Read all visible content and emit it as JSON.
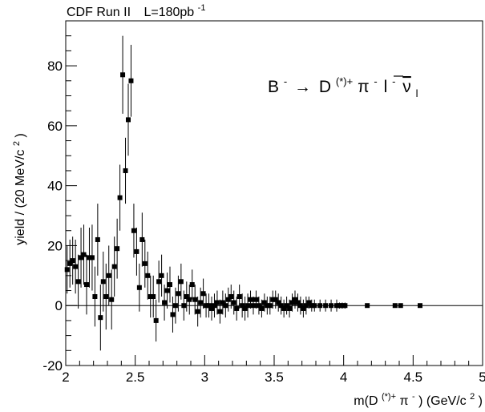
{
  "chart_data": {
    "type": "scatter",
    "header": {
      "experiment": "CDF Run II",
      "lumi_prefix": "L=180pb",
      "lumi_exp": "-1"
    },
    "decay_label": {
      "parent": "B",
      "parent_charge": "-",
      "arrow": "→",
      "d_meson": "D",
      "d_sup": "(*)+",
      "pion": "π",
      "pion_charge": "-",
      "lepton": "l",
      "lepton_charge": "-",
      "neutrino": "ν",
      "neutrino_sub": "l"
    },
    "ylabel": {
      "main": "yield / (20 MeV/c",
      "sup": "2",
      "end": ")"
    },
    "xlabel": {
      "prefix": "m(D",
      "sup1": "(*)+",
      "pion": "π",
      "pion_charge": "-",
      "mid": ") (GeV/c",
      "sup2": "2",
      "end": ")"
    },
    "xlim": [
      2,
      5
    ],
    "ylim": [
      -20,
      95
    ],
    "x_ticks": [
      {
        "value": 2,
        "label": "2"
      },
      {
        "value": 2.5,
        "label": "2.5"
      },
      {
        "value": 3,
        "label": "3"
      },
      {
        "value": 3.5,
        "label": "3.5"
      },
      {
        "value": 4,
        "label": "4"
      },
      {
        "value": 4.5,
        "label": "4.5"
      },
      {
        "value": 5,
        "label": "5"
      }
    ],
    "y_ticks": [
      {
        "value": -20,
        "label": "-20"
      },
      {
        "value": 0,
        "label": "0"
      },
      {
        "value": 20,
        "label": "20"
      },
      {
        "value": 40,
        "label": "40"
      },
      {
        "value": 60,
        "label": "60"
      },
      {
        "value": 80,
        "label": "80"
      }
    ],
    "reference_line_y": 0,
    "points": [
      {
        "x": 2.01,
        "y": 12,
        "err": 8
      },
      {
        "x": 2.03,
        "y": 14,
        "err": 8
      },
      {
        "x": 2.05,
        "y": 15,
        "err": 8
      },
      {
        "x": 2.07,
        "y": 13,
        "err": 9
      },
      {
        "x": 2.09,
        "y": 8,
        "err": 9
      },
      {
        "x": 2.11,
        "y": 16,
        "err": 10
      },
      {
        "x": 2.13,
        "y": 17,
        "err": 10
      },
      {
        "x": 2.15,
        "y": 7,
        "err": 10
      },
      {
        "x": 2.17,
        "y": 16,
        "err": 10
      },
      {
        "x": 2.19,
        "y": 16,
        "err": 11
      },
      {
        "x": 2.21,
        "y": 3,
        "err": 10
      },
      {
        "x": 2.23,
        "y": 22,
        "err": 12
      },
      {
        "x": 2.25,
        "y": -4,
        "err": 11
      },
      {
        "x": 2.27,
        "y": 8,
        "err": 10
      },
      {
        "x": 2.29,
        "y": 3,
        "err": 11
      },
      {
        "x": 2.31,
        "y": 10,
        "err": 10
      },
      {
        "x": 2.33,
        "y": 2,
        "err": 10
      },
      {
        "x": 2.35,
        "y": 13,
        "err": 10
      },
      {
        "x": 2.37,
        "y": 19,
        "err": 10
      },
      {
        "x": 2.39,
        "y": 36,
        "err": 11
      },
      {
        "x": 2.41,
        "y": 77,
        "err": 13
      },
      {
        "x": 2.43,
        "y": 45,
        "err": 11
      },
      {
        "x": 2.45,
        "y": 62,
        "err": 12
      },
      {
        "x": 2.47,
        "y": 75,
        "err": 12
      },
      {
        "x": 2.49,
        "y": 25,
        "err": 9
      },
      {
        "x": 2.51,
        "y": 18,
        "err": 8
      },
      {
        "x": 2.53,
        "y": 6,
        "err": 8
      },
      {
        "x": 2.55,
        "y": 22,
        "err": 9
      },
      {
        "x": 2.57,
        "y": 14,
        "err": 8
      },
      {
        "x": 2.59,
        "y": 10,
        "err": 8
      },
      {
        "x": 2.61,
        "y": 3,
        "err": 7
      },
      {
        "x": 2.63,
        "y": 3,
        "err": 7
      },
      {
        "x": 2.65,
        "y": -5,
        "err": 7
      },
      {
        "x": 2.67,
        "y": 8,
        "err": 7
      },
      {
        "x": 2.69,
        "y": 10,
        "err": 7
      },
      {
        "x": 2.71,
        "y": 1,
        "err": 6
      },
      {
        "x": 2.73,
        "y": 5,
        "err": 6
      },
      {
        "x": 2.75,
        "y": 7,
        "err": 6
      },
      {
        "x": 2.77,
        "y": -3,
        "err": 6
      },
      {
        "x": 2.79,
        "y": 0,
        "err": 6
      },
      {
        "x": 2.81,
        "y": 4,
        "err": 6
      },
      {
        "x": 2.83,
        "y": 8,
        "err": 6
      },
      {
        "x": 2.85,
        "y": 0,
        "err": 5
      },
      {
        "x": 2.87,
        "y": 3,
        "err": 5
      },
      {
        "x": 2.89,
        "y": 2,
        "err": 5
      },
      {
        "x": 2.91,
        "y": 7,
        "err": 5
      },
      {
        "x": 2.93,
        "y": 2,
        "err": 5
      },
      {
        "x": 2.95,
        "y": -2,
        "err": 5
      },
      {
        "x": 2.97,
        "y": 1,
        "err": 5
      },
      {
        "x": 2.99,
        "y": 4,
        "err": 5
      },
      {
        "x": 3.01,
        "y": 0,
        "err": 4
      },
      {
        "x": 3.03,
        "y": 0,
        "err": 4
      },
      {
        "x": 3.05,
        "y": -1,
        "err": 4
      },
      {
        "x": 3.07,
        "y": 0,
        "err": 4
      },
      {
        "x": 3.09,
        "y": 1,
        "err": 4
      },
      {
        "x": 3.11,
        "y": -2,
        "err": 4
      },
      {
        "x": 3.13,
        "y": 1,
        "err": 4
      },
      {
        "x": 3.15,
        "y": 0,
        "err": 4
      },
      {
        "x": 3.17,
        "y": 2,
        "err": 4
      },
      {
        "x": 3.19,
        "y": 3,
        "err": 4
      },
      {
        "x": 3.21,
        "y": 1,
        "err": 4
      },
      {
        "x": 3.23,
        "y": -1,
        "err": 4
      },
      {
        "x": 3.25,
        "y": 3,
        "err": 4
      },
      {
        "x": 3.27,
        "y": 0,
        "err": 4
      },
      {
        "x": 3.29,
        "y": -1,
        "err": 4
      },
      {
        "x": 3.31,
        "y": 0,
        "err": 4
      },
      {
        "x": 3.33,
        "y": 2,
        "err": 3
      },
      {
        "x": 3.35,
        "y": 0,
        "err": 3
      },
      {
        "x": 3.37,
        "y": 2,
        "err": 3
      },
      {
        "x": 3.39,
        "y": 0,
        "err": 3
      },
      {
        "x": 3.41,
        "y": -1,
        "err": 3
      },
      {
        "x": 3.43,
        "y": 1,
        "err": 3
      },
      {
        "x": 3.45,
        "y": 0,
        "err": 3
      },
      {
        "x": 3.47,
        "y": 0,
        "err": 3
      },
      {
        "x": 3.49,
        "y": 2,
        "err": 3
      },
      {
        "x": 3.51,
        "y": 2,
        "err": 3
      },
      {
        "x": 3.53,
        "y": 1,
        "err": 3
      },
      {
        "x": 3.55,
        "y": 0,
        "err": 3
      },
      {
        "x": 3.57,
        "y": -1,
        "err": 3
      },
      {
        "x": 3.59,
        "y": 0,
        "err": 3
      },
      {
        "x": 3.61,
        "y": -1,
        "err": 3
      },
      {
        "x": 3.63,
        "y": 1,
        "err": 3
      },
      {
        "x": 3.65,
        "y": 2,
        "err": 3
      },
      {
        "x": 3.67,
        "y": 1,
        "err": 3
      },
      {
        "x": 3.69,
        "y": 0,
        "err": 3
      },
      {
        "x": 3.71,
        "y": -1,
        "err": 3
      },
      {
        "x": 3.73,
        "y": 0,
        "err": 3
      },
      {
        "x": 3.75,
        "y": 1,
        "err": 2
      },
      {
        "x": 3.77,
        "y": 0,
        "err": 2
      },
      {
        "x": 3.79,
        "y": 0,
        "err": 2
      },
      {
        "x": 3.83,
        "y": 0,
        "err": 2
      },
      {
        "x": 3.87,
        "y": 0,
        "err": 2
      },
      {
        "x": 3.91,
        "y": 0,
        "err": 2
      },
      {
        "x": 3.95,
        "y": 0,
        "err": 2
      },
      {
        "x": 3.97,
        "y": 0,
        "err": 1
      },
      {
        "x": 3.99,
        "y": 0,
        "err": 1
      },
      {
        "x": 4.01,
        "y": 0,
        "err": 1
      },
      {
        "x": 4.17,
        "y": 0,
        "err": 0.5
      },
      {
        "x": 4.37,
        "y": 0,
        "err": 0.5
      },
      {
        "x": 4.41,
        "y": 0,
        "err": 0.5
      },
      {
        "x": 4.55,
        "y": 0,
        "err": 0.5
      }
    ]
  }
}
